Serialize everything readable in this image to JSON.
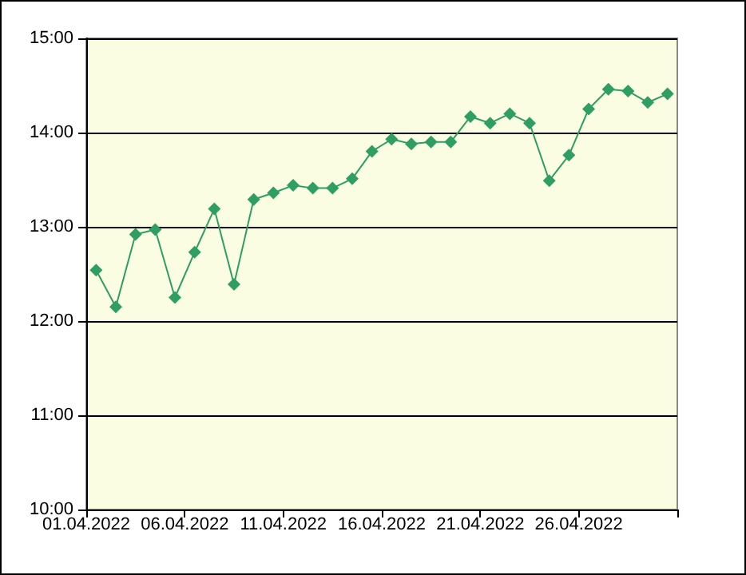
{
  "chart_data": {
    "type": "line",
    "x": [
      "2022-04-01T12:00",
      "2022-04-02T12:00",
      "2022-04-03T12:00",
      "2022-04-04T12:00",
      "2022-04-05T12:00",
      "2022-04-06T12:00",
      "2022-04-07T12:00",
      "2022-04-08T12:00",
      "2022-04-09T12:00",
      "2022-04-10T12:00",
      "2022-04-11T12:00",
      "2022-04-12T12:00",
      "2022-04-13T12:00",
      "2022-04-14T12:00",
      "2022-04-15T12:00",
      "2022-04-16T12:00",
      "2022-04-17T12:00",
      "2022-04-18T12:00",
      "2022-04-19T12:00",
      "2022-04-20T12:00",
      "2022-04-21T12:00",
      "2022-04-22T12:00",
      "2022-04-23T12:00",
      "2022-04-24T12:00",
      "2022-04-25T12:00",
      "2022-04-26T12:00",
      "2022-04-27T12:00",
      "2022-04-28T12:00",
      "2022-04-29T12:00",
      "2022-04-30T12:00"
    ],
    "series": [
      {
        "color": "#2e9e62",
        "values": [
          12.54,
          12.15,
          12.92,
          12.97,
          12.25,
          12.73,
          13.19,
          12.39,
          13.29,
          13.36,
          13.44,
          13.41,
          13.41,
          13.51,
          13.8,
          13.93,
          13.88,
          13.9,
          13.9,
          14.17,
          14.1,
          14.2,
          14.1,
          13.49,
          13.76,
          14.25,
          14.46,
          14.44,
          14.32,
          14.41
        ]
      }
    ],
    "xlim": [
      "2022-04-01",
      "2022-05-01"
    ],
    "xticks": [
      {
        "value": "2022-04-01",
        "label": "01.04.2022"
      },
      {
        "value": "2022-04-06",
        "label": "06.04.2022"
      },
      {
        "value": "2022-04-11",
        "label": "11.04.2022"
      },
      {
        "value": "2022-04-16",
        "label": "16.04.2022"
      },
      {
        "value": "2022-04-21",
        "label": "21.04.2022"
      },
      {
        "value": "2022-04-26",
        "label": "26.04.2022"
      },
      {
        "value": "2022-05-01",
        "label": null
      }
    ],
    "ylim": [
      10,
      15
    ],
    "yticks": [
      {
        "value": 10,
        "label": "10:00"
      },
      {
        "value": 11,
        "label": "11:00"
      },
      {
        "value": 12,
        "label": "12:00"
      },
      {
        "value": 13,
        "label": "13:00"
      },
      {
        "value": 14,
        "label": "14:00"
      },
      {
        "value": 15,
        "label": "15:00"
      }
    ],
    "grid": "y",
    "marker": "diamond",
    "line_style": "solid"
  }
}
